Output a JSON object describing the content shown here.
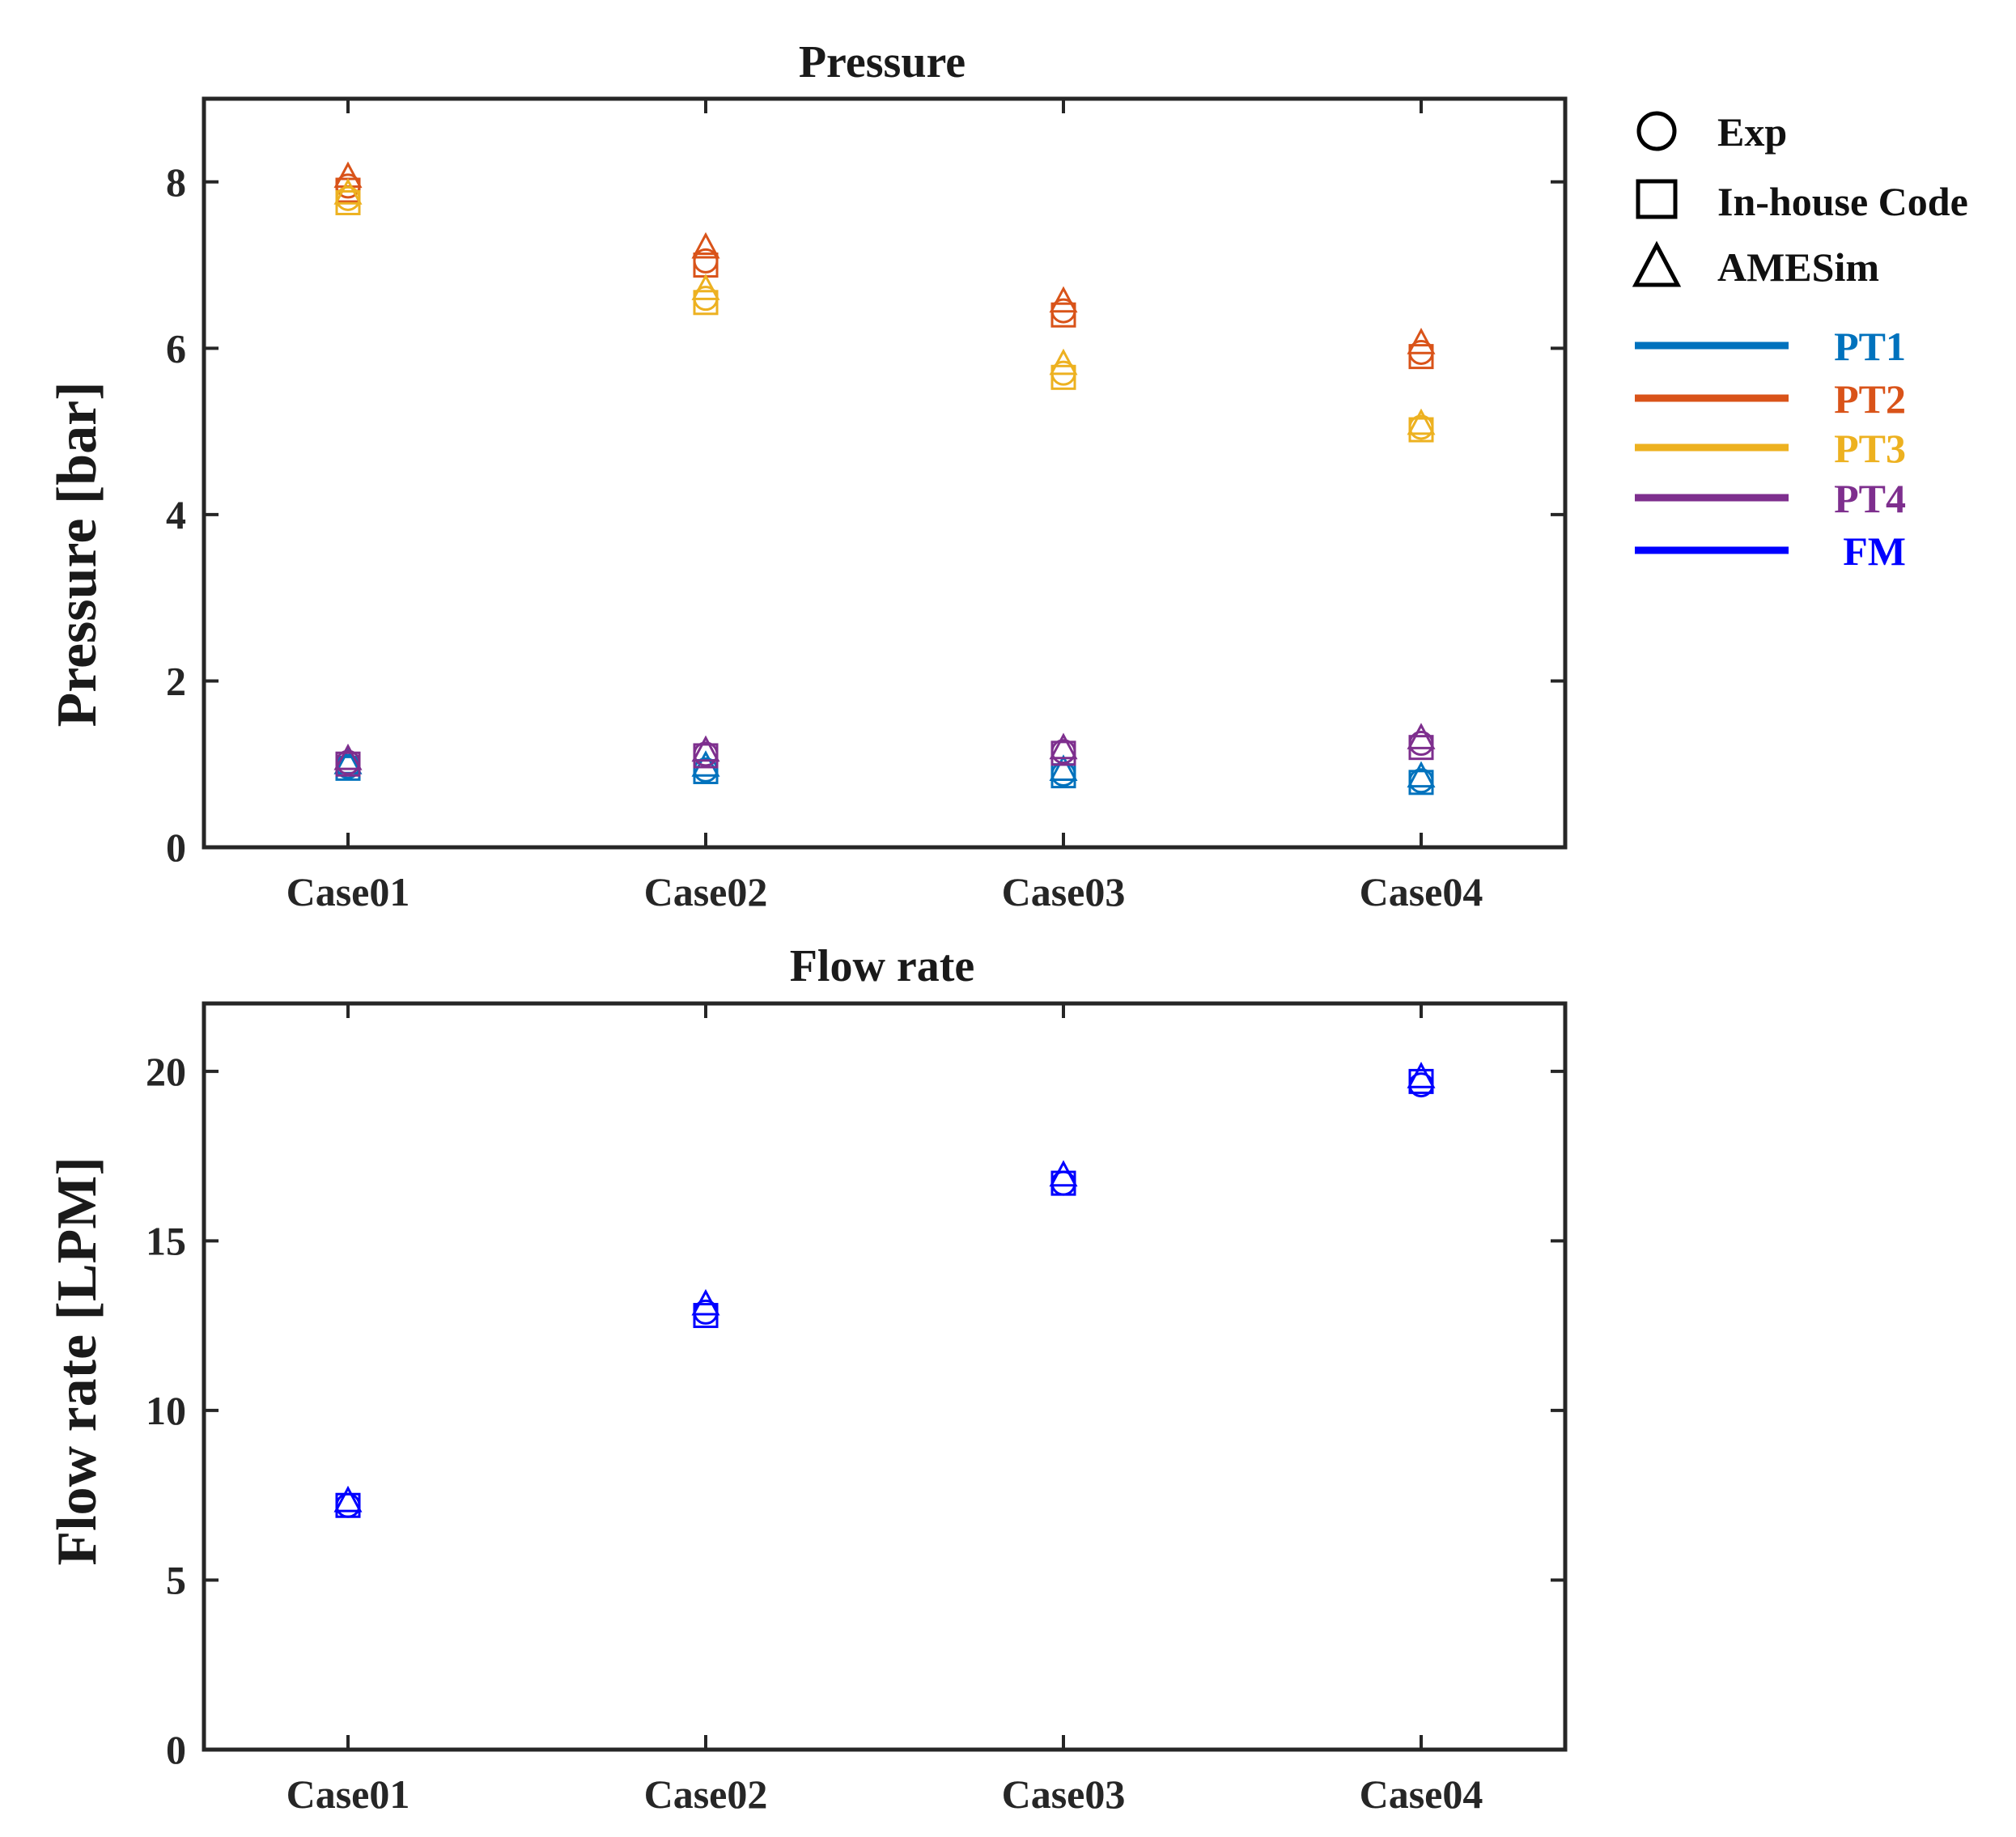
{
  "colors": {
    "PT1": "#0072BD",
    "PT2": "#D95319",
    "PT3": "#EDB120",
    "PT4": "#7E2F8E",
    "FM": "#0000FF"
  },
  "legend": {
    "markers": [
      {
        "shape": "circle",
        "label": "Exp"
      },
      {
        "shape": "square",
        "label": "In-house Code"
      },
      {
        "shape": "triangle",
        "label": "AMESim"
      }
    ],
    "lines": [
      "PT1",
      "PT2",
      "PT3",
      "PT4",
      "FM"
    ]
  },
  "chart_data": [
    {
      "type": "scatter",
      "title": "Pressure",
      "xlabel": "",
      "ylabel": "Pressure [bar]",
      "categories": [
        "Case01",
        "Case02",
        "Case03",
        "Case04"
      ],
      "ylim": [
        0,
        9
      ],
      "yticks": [
        0,
        2,
        4,
        6,
        8
      ],
      "grid": false,
      "series": [
        {
          "name": "PT1",
          "exp": [
            0.97,
            0.93,
            0.88,
            0.8
          ],
          "code": [
            0.95,
            0.91,
            0.86,
            0.78
          ],
          "amesim": [
            1.0,
            0.97,
            0.92,
            0.84
          ]
        },
        {
          "name": "PT2",
          "exp": [
            7.95,
            7.05,
            6.45,
            5.95
          ],
          "code": [
            7.9,
            7.0,
            6.4,
            5.9
          ],
          "amesim": [
            8.05,
            7.2,
            6.55,
            6.05
          ]
        },
        {
          "name": "PT3",
          "exp": [
            7.8,
            6.6,
            5.7,
            5.05
          ],
          "code": [
            7.75,
            6.55,
            5.65,
            5.02
          ],
          "amesim": [
            7.85,
            6.7,
            5.8,
            5.08
          ]
        },
        {
          "name": "PT4",
          "exp": [
            1.02,
            1.12,
            1.15,
            1.25
          ],
          "code": [
            1.0,
            1.1,
            1.13,
            1.2
          ],
          "amesim": [
            1.05,
            1.15,
            1.18,
            1.3
          ]
        }
      ]
    },
    {
      "type": "scatter",
      "title": "Flow rate",
      "xlabel": "",
      "ylabel": "Flow rate [LPM]",
      "categories": [
        "Case01",
        "Case02",
        "Case03",
        "Case04"
      ],
      "ylim": [
        0,
        22
      ],
      "yticks": [
        0,
        5,
        10,
        15,
        20
      ],
      "grid": false,
      "series": [
        {
          "name": "FM",
          "exp": [
            7.2,
            12.9,
            16.7,
            19.6
          ],
          "code": [
            7.2,
            12.8,
            16.7,
            19.7
          ],
          "amesim": [
            7.3,
            13.1,
            16.9,
            19.8
          ]
        }
      ]
    }
  ]
}
